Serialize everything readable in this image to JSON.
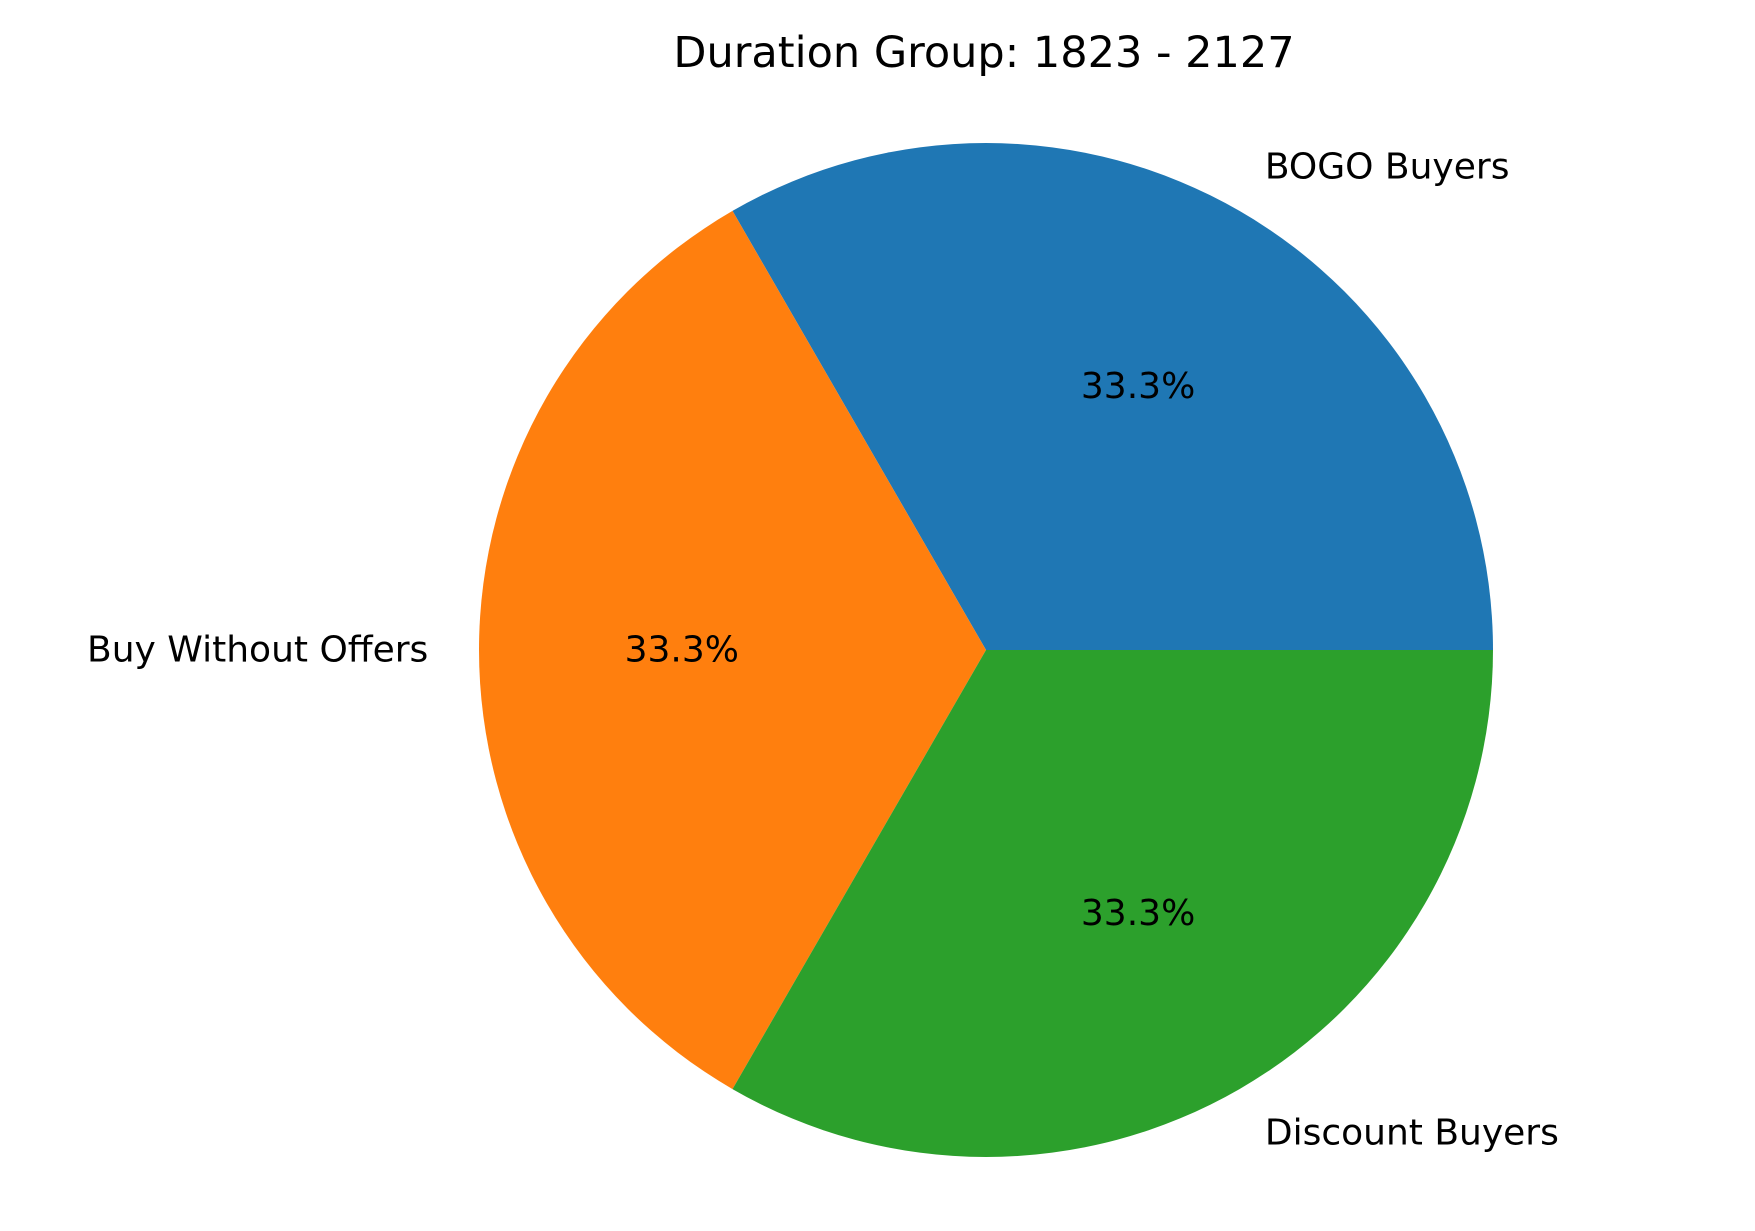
{
  "chart_data": {
    "type": "pie",
    "title": "Duration Group: 1823 - 2127",
    "slices": [
      {
        "label": "BOGO Buyers",
        "value": 1,
        "percent_label": "33.3%",
        "color": "#1f77b4"
      },
      {
        "label": "Buy Without Offers",
        "value": 1,
        "percent_label": "33.3%",
        "color": "#ff7f0e"
      },
      {
        "label": "Discount Buyers",
        "value": 1,
        "percent_label": "33.3%",
        "color": "#2ca02c"
      }
    ],
    "start_angle_deg": 0,
    "direction": "counterclockwise",
    "legend": "none"
  }
}
